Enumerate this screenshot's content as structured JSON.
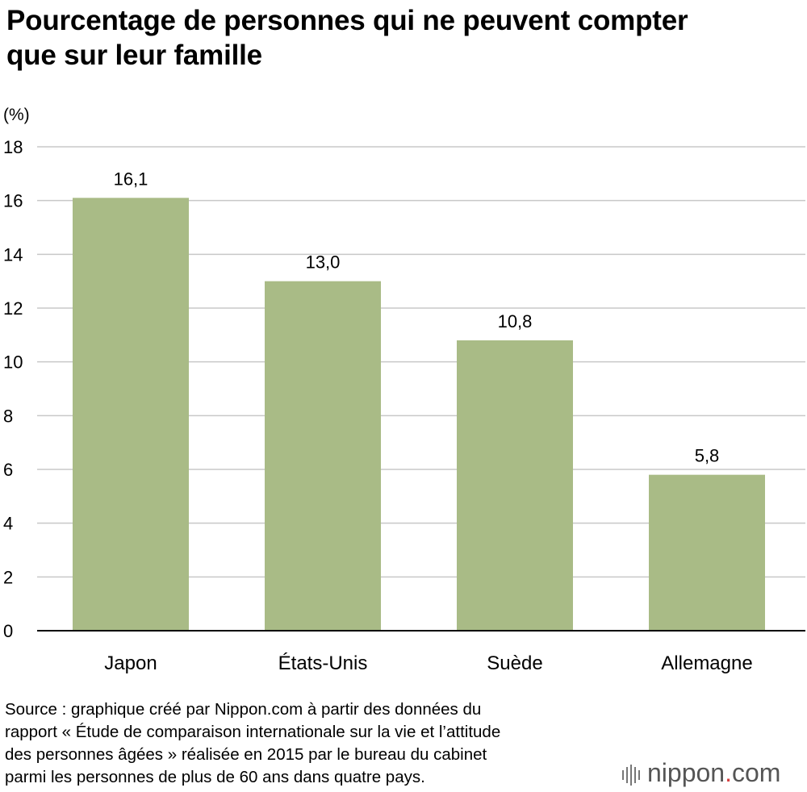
{
  "title_lines": [
    "Pourcentage de personnes qui ne peuvent compter",
    "que sur leur famille"
  ],
  "chart_data": {
    "type": "bar",
    "ylabel": "(%)",
    "ylim": [
      0,
      18
    ],
    "yticks": [
      "0",
      "2",
      "4",
      "6",
      "8",
      "10",
      "12",
      "14",
      "16",
      "18"
    ],
    "grid": true,
    "categories": [
      "Japon",
      "États-Unis",
      "Suède",
      "Allemagne"
    ],
    "values": [
      16.1,
      13.0,
      10.8,
      5.8
    ],
    "value_labels": [
      "16,1",
      "13,0",
      "10,8",
      "5,8"
    ],
    "bar_color": "#a9bb86"
  },
  "source_lines": [
    "Source : graphique créé par Nippon.com à partir des données du",
    "rapport « Étude de comparaison internationale sur la vie et l’attitude",
    "des personnes âgées » réalisée en 2015 par le bureau du cabinet",
    "parmi les personnes de plus de 60 ans dans quatre pays."
  ],
  "logo": {
    "name": "nippon",
    "dot": ".",
    "suffix": "com",
    "icon": "nippon-logo-bars-icon"
  }
}
